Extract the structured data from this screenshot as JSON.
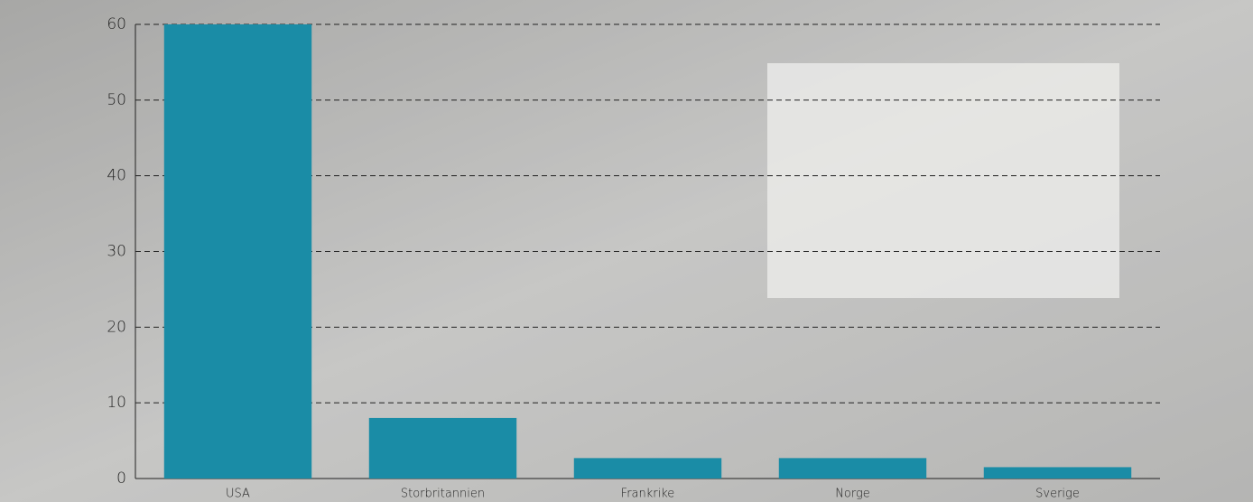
{
  "chart_data": {
    "type": "bar",
    "categories": [
      "USA",
      "Storbritannien",
      "Frankrike",
      "Norge",
      "Sverige"
    ],
    "values": [
      60,
      8,
      2.7,
      2.7,
      1.5
    ],
    "color": "#1a8ca6",
    "ylim": [
      0,
      60
    ],
    "yticks": [
      0,
      10,
      20,
      30,
      40,
      50,
      60
    ],
    "grid": true
  }
}
